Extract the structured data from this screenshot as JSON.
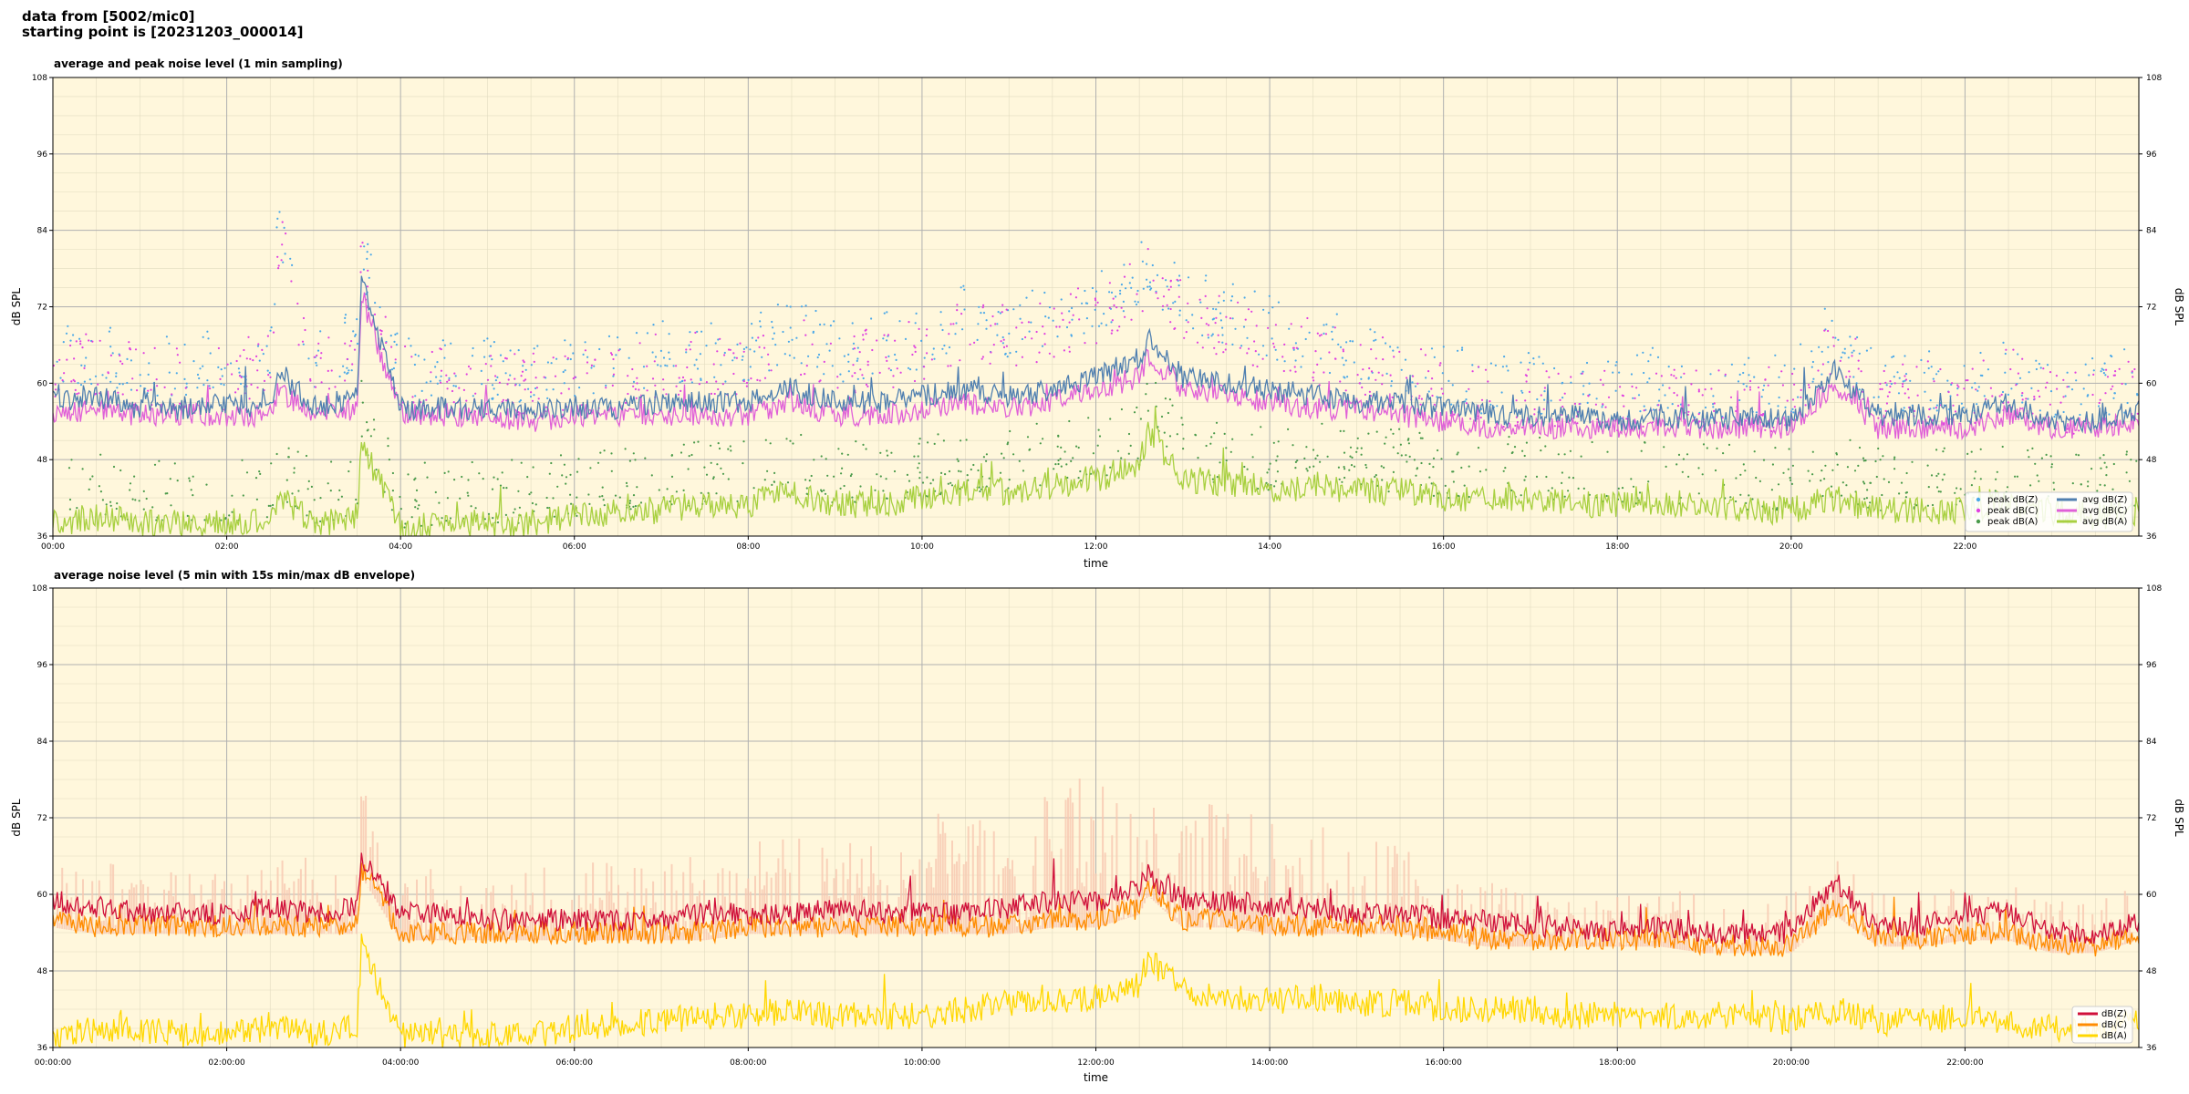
{
  "header": {
    "line1": "data from [5002/mic0]",
    "line2": "starting point is [20231203_000014]"
  },
  "colors": {
    "plot_bg": "#fff7dc",
    "grid_major": "#b0b0b0",
    "grid_minor": "#e2dcc0",
    "avg_z": "#4f7fb0",
    "avg_c": "#e060d8",
    "avg_a": "#a8d040",
    "peak_z": "#4aa8e8",
    "peak_c": "#e040e0",
    "peak_a": "#4a9a4a",
    "db_z": "#d0103a",
    "db_c": "#ff8c00",
    "db_a": "#ffd700",
    "envelope": "#f7c7b0"
  },
  "chart_data": [
    {
      "type": "line",
      "title": "average and peak noise level (1 min sampling)",
      "xlabel": "time",
      "ylabel": "dB SPL",
      "ylabel_right": "dB SPL",
      "xlim": [
        0,
        24
      ],
      "ylim": [
        36,
        108
      ],
      "y_ticks": [
        "36",
        "48",
        "60",
        "72",
        "84",
        "96",
        "108"
      ],
      "x_ticks": [
        "00:00",
        "02:00",
        "04:00",
        "06:00",
        "08:00",
        "10:00",
        "12:00",
        "14:00",
        "16:00",
        "18:00",
        "20:00",
        "22:00"
      ],
      "grid": true,
      "legend_position": "lower-right",
      "legend": [
        "peak dB(Z)",
        "peak dB(C)",
        "peak dB(A)",
        "avg dB(Z)",
        "avg dB(C)",
        "avg dB(A)"
      ],
      "x": [
        0,
        0.5,
        1,
        1.5,
        2,
        2.5,
        2.6,
        3,
        3.5,
        3.55,
        4,
        4.5,
        5,
        5.5,
        6,
        6.5,
        7,
        7.5,
        8,
        8.5,
        9,
        9.5,
        10,
        10.5,
        11,
        11.5,
        12,
        12.5,
        12.6,
        13,
        13.5,
        14,
        14.5,
        15,
        15.5,
        16,
        16.5,
        17,
        17.5,
        18,
        18.5,
        19,
        19.5,
        20,
        20.5,
        21,
        21.5,
        22,
        22.5,
        23,
        23.5,
        24
      ],
      "series": [
        {
          "name": "avg dB(Z)",
          "kind": "line",
          "values": [
            57,
            58,
            56,
            56,
            57,
            56,
            62,
            56,
            58,
            76,
            56,
            56,
            56,
            56,
            56,
            56,
            57,
            57,
            57,
            59,
            57,
            57,
            58,
            59,
            58,
            59,
            61,
            64,
            67,
            61,
            60,
            59,
            58,
            57,
            57,
            56,
            55,
            55,
            55,
            54,
            55,
            54,
            55,
            54,
            62,
            55,
            55,
            55,
            57,
            54,
            54,
            56
          ]
        },
        {
          "name": "avg dB(C)",
          "kind": "line",
          "values": [
            55,
            56,
            55,
            55,
            55,
            55,
            59,
            55,
            56,
            74,
            55,
            55,
            55,
            54,
            55,
            55,
            55,
            55,
            55,
            57,
            55,
            55,
            56,
            57,
            56,
            57,
            59,
            61,
            64,
            59,
            58,
            57,
            56,
            56,
            55,
            54,
            53,
            53,
            53,
            53,
            53,
            53,
            53,
            53,
            60,
            53,
            53,
            53,
            55,
            53,
            53,
            54
          ]
        },
        {
          "name": "avg dB(A)",
          "kind": "line",
          "values": [
            38,
            39,
            38,
            38,
            38,
            39,
            42,
            38,
            39,
            51,
            37,
            38,
            38,
            38,
            39,
            40,
            40,
            41,
            41,
            43,
            41,
            41,
            42,
            43,
            43,
            44,
            45,
            47,
            53,
            45,
            44,
            43,
            44,
            43,
            43,
            42,
            42,
            42,
            41,
            41,
            41,
            41,
            40,
            40,
            42,
            40,
            40,
            40,
            41,
            40,
            39,
            40
          ]
        },
        {
          "name": "peak dB(Z)",
          "kind": "scatter",
          "values": [
            63,
            64,
            62,
            62,
            63,
            64,
            84,
            63,
            66,
            80,
            62,
            62,
            61,
            61,
            62,
            62,
            64,
            64,
            64,
            68,
            64,
            65,
            66,
            70,
            68,
            70,
            72,
            76,
            78,
            72,
            70,
            68,
            66,
            64,
            63,
            61,
            59,
            59,
            59,
            58,
            60,
            58,
            59,
            58,
            68,
            59,
            60,
            59,
            62,
            58,
            58,
            60
          ]
        },
        {
          "name": "peak dB(C)",
          "kind": "scatter",
          "values": [
            61,
            62,
            60,
            60,
            61,
            62,
            82,
            61,
            64,
            79,
            60,
            60,
            59,
            59,
            60,
            60,
            62,
            62,
            62,
            66,
            62,
            63,
            64,
            68,
            66,
            68,
            70,
            74,
            76,
            70,
            68,
            66,
            64,
            62,
            61,
            59,
            57,
            57,
            57,
            56,
            58,
            56,
            57,
            56,
            66,
            57,
            58,
            57,
            60,
            56,
            56,
            58
          ]
        },
        {
          "name": "peak dB(A)",
          "kind": "scatter",
          "values": [
            42,
            43,
            42,
            42,
            42,
            43,
            46,
            42,
            43,
            55,
            41,
            42,
            42,
            42,
            43,
            44,
            44,
            45,
            45,
            47,
            45,
            45,
            46,
            47,
            47,
            48,
            49,
            51,
            56,
            49,
            48,
            47,
            48,
            47,
            47,
            46,
            46,
            46,
            45,
            45,
            45,
            45,
            44,
            44,
            46,
            44,
            44,
            44,
            45,
            44,
            43,
            44
          ]
        }
      ]
    },
    {
      "type": "line",
      "title": "average noise level (5 min with 15s min/max dB envelope)",
      "xlabel": "time",
      "ylabel": "dB SPL",
      "ylabel_right": "dB SPL",
      "xlim": [
        0,
        24
      ],
      "ylim": [
        36,
        108
      ],
      "y_ticks": [
        "36",
        "48",
        "60",
        "72",
        "84",
        "96",
        "108"
      ],
      "x_ticks": [
        "00:00:00",
        "02:00:00",
        "04:00:00",
        "06:00:00",
        "08:00:00",
        "10:00:00",
        "12:00:00",
        "14:00:00",
        "16:00:00",
        "18:00:00",
        "20:00:00",
        "22:00:00"
      ],
      "grid": true,
      "legend_position": "lower-right",
      "legend": [
        "dB(Z)",
        "dB(C)",
        "dB(A)"
      ],
      "x": [
        0,
        0.5,
        1,
        1.5,
        2,
        2.5,
        3,
        3.5,
        3.55,
        4,
        4.5,
        5,
        5.5,
        6,
        6.5,
        7,
        7.5,
        8,
        8.5,
        9,
        9.5,
        10,
        10.5,
        11,
        11.5,
        12,
        12.5,
        12.6,
        13,
        13.5,
        14,
        14.5,
        15,
        15.5,
        16,
        16.5,
        17,
        17.5,
        18,
        18.5,
        19,
        19.5,
        20,
        20.5,
        21,
        21.5,
        22,
        22.5,
        23,
        23.5,
        24
      ],
      "series": [
        {
          "name": "dB(Z)",
          "values": [
            59,
            58,
            57,
            57,
            57,
            58,
            57,
            58,
            66,
            57,
            57,
            56,
            56,
            56,
            56,
            56,
            57,
            57,
            57,
            58,
            57,
            57,
            57,
            58,
            59,
            59,
            61,
            63,
            59,
            59,
            58,
            58,
            57,
            57,
            56,
            56,
            55,
            55,
            54,
            55,
            54,
            54,
            54,
            62,
            55,
            55,
            57,
            57,
            54,
            54,
            56
          ]
        },
        {
          "name": "dB(C)",
          "values": [
            56,
            55,
            55,
            55,
            55,
            55,
            55,
            55,
            64,
            54,
            54,
            54,
            54,
            54,
            54,
            54,
            54,
            55,
            55,
            55,
            55,
            55,
            55,
            55,
            56,
            56,
            58,
            61,
            56,
            56,
            55,
            55,
            55,
            55,
            54,
            53,
            53,
            53,
            53,
            53,
            52,
            52,
            52,
            58,
            53,
            53,
            54,
            54,
            52,
            52,
            54
          ]
        },
        {
          "name": "dB(A)",
          "values": [
            38,
            39,
            39,
            38,
            38,
            39,
            38,
            39,
            52,
            38,
            38,
            38,
            38,
            39,
            40,
            40,
            41,
            41,
            42,
            41,
            41,
            41,
            42,
            43,
            43,
            44,
            46,
            50,
            45,
            44,
            43,
            44,
            43,
            43,
            42,
            42,
            42,
            41,
            41,
            41,
            41,
            41,
            40,
            42,
            40,
            40,
            41,
            40,
            39,
            39,
            40
          ]
        },
        {
          "name": "",
          "kind": "envelope",
          "values": [
            64,
            66,
            64,
            64,
            64,
            66,
            66,
            64,
            78,
            64,
            64,
            62,
            64,
            66,
            66,
            66,
            68,
            68,
            70,
            68,
            70,
            72,
            74,
            76,
            76,
            80,
            80,
            78,
            76,
            74,
            72,
            72,
            70,
            68,
            62,
            62,
            60,
            60,
            60,
            62,
            60,
            60,
            60,
            66,
            60,
            60,
            62,
            62,
            60,
            60,
            62
          ]
        }
      ]
    }
  ]
}
